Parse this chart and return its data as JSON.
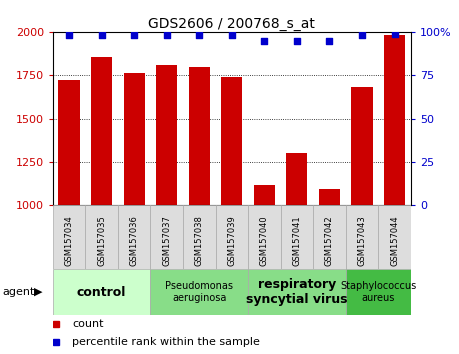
{
  "title": "GDS2606 / 200768_s_at",
  "samples": [
    "GSM157034",
    "GSM157035",
    "GSM157036",
    "GSM157037",
    "GSM157038",
    "GSM157039",
    "GSM157040",
    "GSM157041",
    "GSM157042",
    "GSM157043",
    "GSM157044"
  ],
  "counts": [
    1720,
    1855,
    1760,
    1810,
    1800,
    1740,
    1120,
    1300,
    1095,
    1680,
    1980
  ],
  "percentiles": [
    98,
    98,
    98,
    98,
    98,
    98,
    95,
    95,
    95,
    98,
    99
  ],
  "ymin": 1000,
  "ymax": 2000,
  "yticks": [
    1000,
    1250,
    1500,
    1750,
    2000
  ],
  "ytick_labels": [
    "1000",
    "1250",
    "1500",
    "1750",
    "2000"
  ],
  "y2min": 0,
  "y2max": 100,
  "y2ticks": [
    0,
    25,
    50,
    75,
    100
  ],
  "y2tick_labels": [
    "0",
    "25",
    "50",
    "75",
    "100%"
  ],
  "bar_color": "#cc0000",
  "dot_color": "#0000cc",
  "bar_width": 0.65,
  "groups": [
    {
      "label": "control",
      "start": 0,
      "end": 2,
      "color": "#ccffcc",
      "fontsize": 9,
      "bold": true
    },
    {
      "label": "Pseudomonas\naeruginosa",
      "start": 3,
      "end": 5,
      "color": "#88dd88",
      "fontsize": 7,
      "bold": false
    },
    {
      "label": "respiratory\nsyncytial virus",
      "start": 6,
      "end": 8,
      "color": "#88dd88",
      "fontsize": 9,
      "bold": true
    },
    {
      "label": "Staphylococcus\naureus",
      "start": 9,
      "end": 10,
      "color": "#44bb44",
      "fontsize": 7,
      "bold": false
    }
  ],
  "agent_label": "agent",
  "legend_count_label": "count",
  "legend_pct_label": "percentile rank within the sample",
  "bg_color": "#ffffff",
  "plot_bg_color": "#ffffff",
  "tick_label_color_left": "#cc0000",
  "tick_label_color_right": "#0000cc",
  "title_color": "#000000",
  "sample_cell_bg": "#dddddd",
  "grid_linestyle": "dotted"
}
